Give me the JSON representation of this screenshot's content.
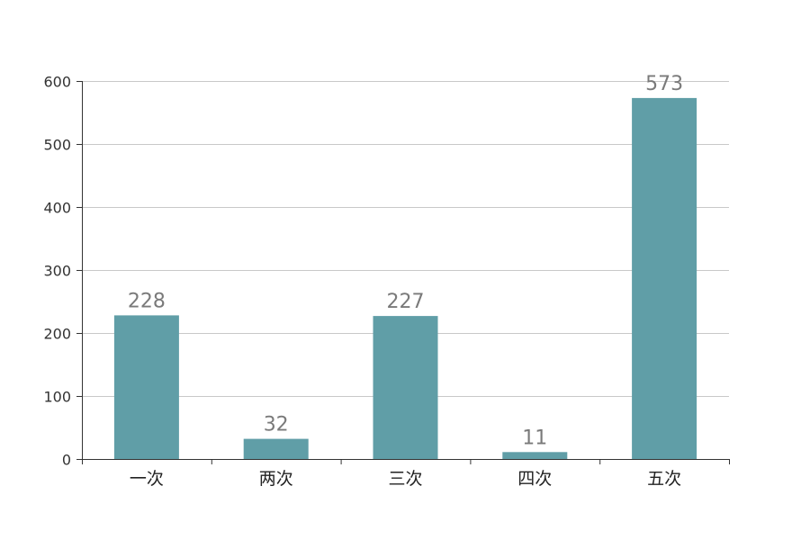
{
  "chart_data": {
    "type": "bar",
    "title": "",
    "xlabel": "",
    "ylabel": "",
    "categories": [
      "一次",
      "两次",
      "三次",
      "四次",
      "五次"
    ],
    "values": [
      228,
      32,
      227,
      11,
      573
    ],
    "ylim": [
      0,
      600
    ],
    "yticks": [
      0,
      100,
      200,
      300,
      400,
      500,
      600
    ],
    "ytick_labels": [
      "0",
      "100",
      "200",
      "300",
      "400",
      "500",
      "600"
    ],
    "data_labels": [
      "228",
      "32",
      "227",
      "11",
      "573"
    ],
    "grid": true,
    "legend": "none",
    "bar_color": "#609ea7"
  }
}
